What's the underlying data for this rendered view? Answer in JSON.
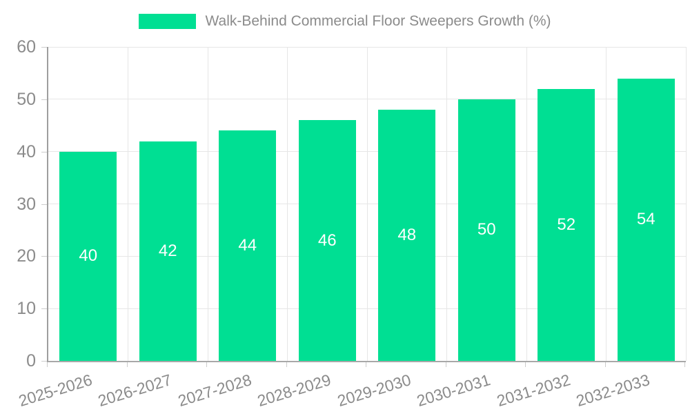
{
  "chart_data": {
    "type": "bar",
    "title": "Walk-Behind Commercial Floor Sweepers Growth (%)",
    "categories": [
      "2025-2026",
      "2026-2027",
      "2027-2028",
      "2028-2029",
      "2029-2030",
      "2030-2031",
      "2031-2032",
      "2032-2033"
    ],
    "values": [
      40,
      42,
      44,
      46,
      48,
      50,
      52,
      54
    ],
    "bar_value_labels": [
      "40",
      "42",
      "44",
      "46",
      "48",
      "50",
      "52",
      "54"
    ],
    "xlabel": "",
    "ylabel": "",
    "ylim": [
      0,
      60
    ],
    "yticks": [
      0,
      10,
      20,
      30,
      40,
      50,
      60
    ],
    "grid": true,
    "legend_position": "top",
    "legend_label": "Walk-Behind Commercial Floor Sweepers Growth (%)"
  },
  "colors": {
    "bar": "#00DF93",
    "bar_value_text": "#ffffff",
    "grid": "#e6e6e6",
    "axis_line": "#a0a0a0",
    "tick_mark": "#cccccc",
    "tick_text": "#8b8b8b",
    "legend_text": "#8b8b8b",
    "background": "#ffffff"
  }
}
